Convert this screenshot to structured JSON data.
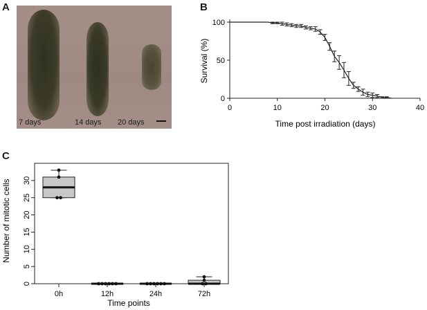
{
  "panels": {
    "a": {
      "letter": "A",
      "labels": [
        "7 days",
        "14 days",
        "20 days"
      ]
    },
    "b": {
      "letter": "B"
    },
    "c": {
      "letter": "C"
    }
  },
  "chart_data": [
    {
      "id": "survival",
      "type": "line",
      "title": "",
      "xlabel": "Time post irradiation (days)",
      "ylabel": "Survival (%)",
      "xlim": [
        0,
        40
      ],
      "ylim": [
        0,
        100
      ],
      "x_ticks": [
        0,
        10,
        20,
        30,
        40
      ],
      "y_ticks": [
        0,
        50,
        100
      ],
      "grid": false,
      "series": [
        {
          "x": [
            0,
            4,
            8,
            9,
            10,
            11,
            12,
            13,
            14,
            15,
            16,
            17,
            18,
            19,
            20,
            21,
            22,
            23,
            24,
            25,
            26,
            27,
            28,
            29,
            30,
            31,
            32,
            33,
            34
          ],
          "y": [
            100,
            100,
            100,
            99,
            99,
            98,
            97,
            96,
            95,
            95,
            93,
            92,
            91,
            87,
            80,
            68,
            55,
            47,
            37,
            26,
            17,
            12,
            8,
            5,
            4,
            3,
            1,
            1,
            0
          ],
          "err": [
            0,
            0,
            0,
            1,
            1,
            2,
            2,
            2,
            2,
            2,
            2,
            2,
            3,
            3,
            4,
            5,
            7,
            9,
            10,
            9,
            4,
            3,
            4,
            3,
            3,
            2,
            1,
            1,
            0
          ]
        }
      ]
    },
    {
      "id": "mitosis",
      "type": "box",
      "title": "",
      "xlabel": "Time points",
      "ylabel": "Number of mitotic cells",
      "categories": [
        "0h",
        "12h",
        "24h",
        "72h"
      ],
      "ylim": [
        0,
        35
      ],
      "y_ticks": [
        0,
        5,
        10,
        15,
        20,
        25,
        30
      ],
      "boxes": [
        {
          "min": 25,
          "q1": 25,
          "median": 28,
          "q3": 31,
          "max": 33,
          "points": [
            33,
            31,
            25,
            25
          ]
        },
        {
          "min": 0,
          "q1": 0,
          "median": 0,
          "q3": 0,
          "max": 0,
          "points": [
            0,
            0,
            0,
            0,
            0,
            0
          ]
        },
        {
          "min": 0,
          "q1": 0,
          "median": 0,
          "q3": 0,
          "max": 0,
          "points": [
            0,
            0,
            0,
            0,
            0,
            0
          ]
        },
        {
          "min": 0,
          "q1": 0,
          "median": 0,
          "q3": 1,
          "max": 2,
          "points": [
            2,
            1,
            0,
            0
          ]
        }
      ]
    }
  ]
}
